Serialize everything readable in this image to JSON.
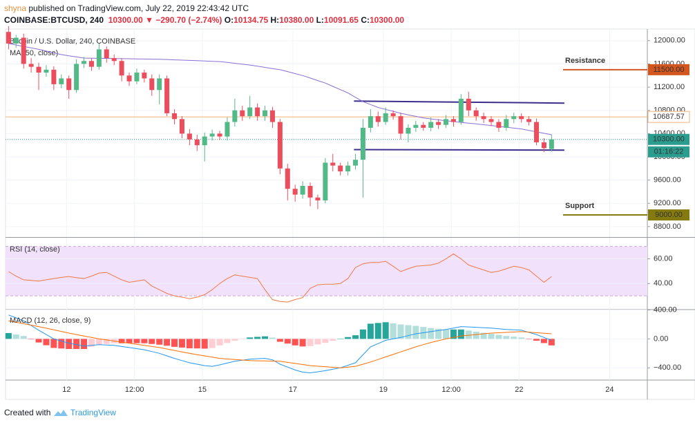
{
  "header": {
    "author": "shyna",
    "publisher": " published on TradingView.com, July 22, 2019 22:43:42 UTC",
    "symbol": "COINBASE:BTCUSD, 240",
    "last": "10300.00",
    "change": "−290.70 (−2.74%)",
    "ohlc": [
      {
        "label": "O:",
        "value": "10134.75"
      },
      {
        "label": "H:",
        "value": "10380.00"
      },
      {
        "label": "L:",
        "value": "10091.65"
      },
      {
        "label": "C:",
        "value": "10300.00"
      }
    ]
  },
  "footer": {
    "text": "Created with",
    "brand": "TradingView"
  },
  "chart_data": [
    {
      "type": "candlestick",
      "title": "Bitcoin / U.S. Dollar, 240, COINBASE",
      "up_color": "#53b987",
      "down_color": "#eb4d5c",
      "open": [
        12150,
        11950,
        12050,
        11600,
        11550,
        11450,
        11500,
        11250,
        11350,
        11150,
        11600,
        11650,
        11550,
        11850,
        11700,
        11650,
        11400,
        11300,
        11450,
        11350,
        11150,
        11350,
        10750,
        10650,
        10400,
        10300,
        10200,
        10350,
        10400,
        10350,
        10600,
        10800,
        10700,
        10850,
        10700,
        10800,
        10600,
        9800,
        9450,
        9350,
        9500,
        9300,
        9250,
        9900,
        9850,
        9750,
        9850,
        9950,
        10500,
        10700,
        10600,
        10750,
        10700,
        10400,
        10500,
        10550,
        10500,
        10600,
        10550,
        10650,
        10600,
        11000,
        10800,
        10700,
        10650,
        10600,
        10500,
        10650,
        10700,
        10650,
        10600,
        10250,
        10134.75
      ],
      "high": [
        12250,
        12100,
        12120,
        11700,
        11620,
        11580,
        11560,
        11420,
        11400,
        11680,
        11720,
        11700,
        11950,
        11900,
        11760,
        11700,
        11450,
        11520,
        11500,
        11420,
        11420,
        11400,
        10820,
        10700,
        10480,
        10380,
        10420,
        10470,
        10450,
        10680,
        11000,
        10880,
        11050,
        10920,
        10880,
        10860,
        10650,
        9880,
        9520,
        9580,
        9560,
        9350,
        9980,
        10050,
        9900,
        9920,
        10050,
        10650,
        10820,
        10780,
        10850,
        10800,
        10760,
        10560,
        10620,
        10600,
        10680,
        10650,
        10720,
        10700,
        11080,
        11120,
        10850,
        10760,
        10700,
        10650,
        10720,
        10760,
        10750,
        10700,
        10660,
        10320,
        10380
      ],
      "low": [
        11850,
        11880,
        11520,
        11450,
        11150,
        11380,
        11150,
        11180,
        11000,
        11100,
        11530,
        11480,
        11500,
        11620,
        11580,
        11300,
        11220,
        11250,
        11280,
        11050,
        10900,
        10700,
        10560,
        10320,
        10200,
        10100,
        9920,
        10280,
        10290,
        10280,
        10520,
        10620,
        10650,
        10620,
        10620,
        10500,
        9700,
        9250,
        9230,
        9280,
        9150,
        9100,
        9200,
        9750,
        9680,
        9680,
        9780,
        9300,
        10420,
        10520,
        10550,
        10640,
        10300,
        10250,
        10430,
        10450,
        10440,
        10480,
        10500,
        10520,
        10550,
        10700,
        10620,
        10580,
        10530,
        10430,
        10450,
        10580,
        10590,
        10540,
        10200,
        10080,
        10091.65
      ],
      "close": [
        11950,
        12050,
        11600,
        11550,
        11450,
        11500,
        11250,
        11350,
        11150,
        11600,
        11650,
        11550,
        11850,
        11700,
        11650,
        11400,
        11300,
        11450,
        11350,
        11150,
        11350,
        10750,
        10650,
        10400,
        10300,
        10200,
        10350,
        10400,
        10350,
        10600,
        10800,
        10700,
        10850,
        10700,
        10800,
        10600,
        9800,
        9450,
        9350,
        9500,
        9300,
        9250,
        9900,
        9850,
        9750,
        9850,
        9950,
        10500,
        10700,
        10600,
        10750,
        10700,
        10400,
        10500,
        10550,
        10500,
        10600,
        10550,
        10650,
        10600,
        11000,
        10800,
        10700,
        10650,
        10600,
        10500,
        10650,
        10700,
        10650,
        10600,
        10250,
        10150,
        10300
      ],
      "series": [
        {
          "name": "MA (50, close)",
          "color": "#8a6ed6",
          "values": [
            11950,
            11925,
            11900,
            11875,
            11850,
            11820,
            11790,
            11760,
            11740,
            11720,
            11700,
            11698,
            11696,
            11694,
            11692,
            11690,
            11688,
            11686,
            11684,
            11682,
            11680,
            11675,
            11670,
            11665,
            11660,
            11655,
            11650,
            11645,
            11640,
            11625,
            11610,
            11595,
            11580,
            11560,
            11540,
            11520,
            11500,
            11467,
            11433,
            11400,
            11357,
            11313,
            11270,
            11213,
            11157,
            11100,
            11025,
            10950,
            10900,
            10850,
            10817,
            10783,
            10750,
            10723,
            10697,
            10670,
            10653,
            10637,
            10620,
            10607,
            10593,
            10580,
            10567,
            10553,
            10540,
            10525,
            10510,
            10495,
            10480,
            10455,
            10430,
            10405,
            10380
          ]
        }
      ],
      "xlim": [
        -0.4,
        84.7
      ],
      "xticks": [
        {
          "value": 7.7,
          "label": "12"
        },
        {
          "value": 16.7,
          "label": "12:00"
        },
        {
          "value": 25.7,
          "label": "15"
        },
        {
          "value": 37.7,
          "label": "17"
        },
        {
          "value": 49.7,
          "label": "19"
        },
        {
          "value": 58.7,
          "label": "12:00"
        },
        {
          "value": 67.7,
          "label": "22"
        },
        {
          "value": 79.7,
          "label": "24"
        }
      ],
      "ylim": [
        8620,
        12200
      ],
      "yticks": [
        {
          "value": 12000,
          "label": "12000.00"
        },
        {
          "value": 11600,
          "label": "11600.00"
        },
        {
          "value": 11200,
          "label": "11200.00"
        },
        {
          "value": 10800,
          "label": "10800.00"
        },
        {
          "value": 10400,
          "label": "10400.00"
        },
        {
          "value": 10000,
          "label": "10000.00"
        },
        {
          "value": 9600,
          "label": "9600.00"
        },
        {
          "value": 9200,
          "label": "9200.00"
        },
        {
          "value": 8800,
          "label": "8800.00"
        }
      ],
      "grid": true,
      "price_lines": [
        {
          "value": 10687.57,
          "label": "10687.57",
          "color": "#f5b27a"
        },
        {
          "value": 10300,
          "label": "10300.00",
          "color": "#2a9d8f",
          "countdown": "01:16:22"
        },
        {
          "value": 11500,
          "label": "11500.00",
          "color": "#d3561f",
          "note": "Resistance",
          "note_color": "#6b3fb3"
        },
        {
          "value": 9000,
          "label": "9000.00",
          "color": "#857a10",
          "note": "Support",
          "note_color": "#c8231e"
        }
      ],
      "trendlines": [
        {
          "x": [
            45.8,
            73.7
          ],
          "y": [
            10960,
            10925
          ]
        },
        {
          "x": [
            45.8,
            73.7
          ],
          "y": [
            10125,
            10115
          ]
        }
      ],
      "trend_color": "#3b2d8c"
    },
    {
      "type": "line",
      "title": "RSI (14, close)",
      "color": "#f07a45",
      "band": [
        30,
        70
      ],
      "band_color": "#f1e1fb",
      "values": [
        49.7,
        46,
        43,
        42.5,
        42,
        43,
        44,
        45,
        45.7,
        44.8,
        44,
        46,
        48.5,
        49,
        46,
        43,
        41,
        42,
        43,
        38,
        35,
        32,
        30,
        29,
        27.7,
        29,
        31,
        35,
        40,
        44,
        47,
        46,
        45,
        44,
        35,
        27,
        25.5,
        25,
        27,
        28.6,
        36,
        39,
        39.5,
        39.5,
        40,
        44,
        53,
        56,
        57,
        57,
        58,
        54,
        49.7,
        52,
        54,
        54.5,
        55,
        56.5,
        60,
        64,
        60,
        55,
        53,
        51,
        49,
        50,
        52,
        54,
        53,
        51,
        46,
        41,
        45.7
      ],
      "ylim": [
        18.9,
        77.1
      ],
      "yticks": [
        {
          "value": 60,
          "label": "60.00"
        },
        {
          "value": 40,
          "label": "40.00"
        }
      ]
    },
    {
      "type": "macd",
      "title": "MACD (12, 26, close, 9)",
      "hist_colors": [
        "#26a69a",
        "#b2dfdb",
        "#ff5252",
        "#ffcdd2"
      ],
      "series": [
        {
          "name": "MACD",
          "color": "#2196f3",
          "values": [
            330,
            290,
            250,
            185,
            120,
            60,
            0,
            -30,
            -60,
            -80,
            -100,
            -90,
            -80,
            -85,
            -90,
            -105,
            -120,
            -135,
            -150,
            -175,
            -200,
            -235,
            -270,
            -300,
            -330,
            -350,
            -370,
            -380,
            -360,
            -335,
            -310,
            -295,
            -280,
            -275,
            -270,
            -290,
            -350,
            -390,
            -430,
            -460,
            -470,
            -455,
            -440,
            -420,
            -400,
            -365,
            -330,
            -220,
            -110,
            -65,
            -20,
            0,
            20,
            45,
            70,
            85,
            100,
            115,
            130,
            150,
            170,
            165,
            160,
            155,
            150,
            140,
            130,
            125,
            120,
            90,
            60,
            20,
            -20
          ]
        },
        {
          "name": "Signal",
          "color": "#ff6d00",
          "values": [
            250,
            230,
            210,
            190,
            170,
            148,
            125,
            103,
            80,
            60,
            40,
            20,
            0,
            -15,
            -30,
            -45,
            -60,
            -75,
            -90,
            -105,
            -120,
            -140,
            -160,
            -180,
            -200,
            -218,
            -235,
            -253,
            -270,
            -278,
            -285,
            -293,
            -300,
            -303,
            -305,
            -308,
            -310,
            -325,
            -340,
            -355,
            -370,
            -378,
            -385,
            -393,
            -400,
            -390,
            -380,
            -350,
            -320,
            -285,
            -250,
            -215,
            -180,
            -145,
            -110,
            -80,
            -50,
            -25,
            0,
            20,
            40,
            50,
            60,
            70,
            80,
            85,
            90,
            95,
            100,
            93,
            85,
            78,
            70
          ]
        }
      ],
      "histogram": [
        80,
        60,
        40,
        -5,
        -50,
        -88,
        -125,
        -133,
        -140,
        -140,
        -140,
        -110,
        -80,
        -70,
        -60,
        -60,
        -60,
        -60,
        -60,
        -70,
        -80,
        -95,
        -110,
        -120,
        -130,
        -132,
        -135,
        -127,
        -90,
        -57,
        -25,
        -2,
        20,
        28,
        35,
        18,
        -40,
        -65,
        -90,
        -105,
        -100,
        -77,
        -55,
        -27,
        0,
        25,
        50,
        130,
        210,
        220,
        230,
        215,
        200,
        190,
        180,
        165,
        150,
        140,
        130,
        130,
        130,
        115,
        100,
        85,
        70,
        55,
        40,
        30,
        20,
        -3,
        -25,
        -58,
        -90
      ],
      "ylim": [
        -570,
        405
      ],
      "yticks": [
        {
          "value": 400,
          "label": "400.00"
        },
        {
          "value": 0,
          "label": "0.00"
        },
        {
          "value": -400,
          "label": "−400.00"
        }
      ]
    }
  ]
}
